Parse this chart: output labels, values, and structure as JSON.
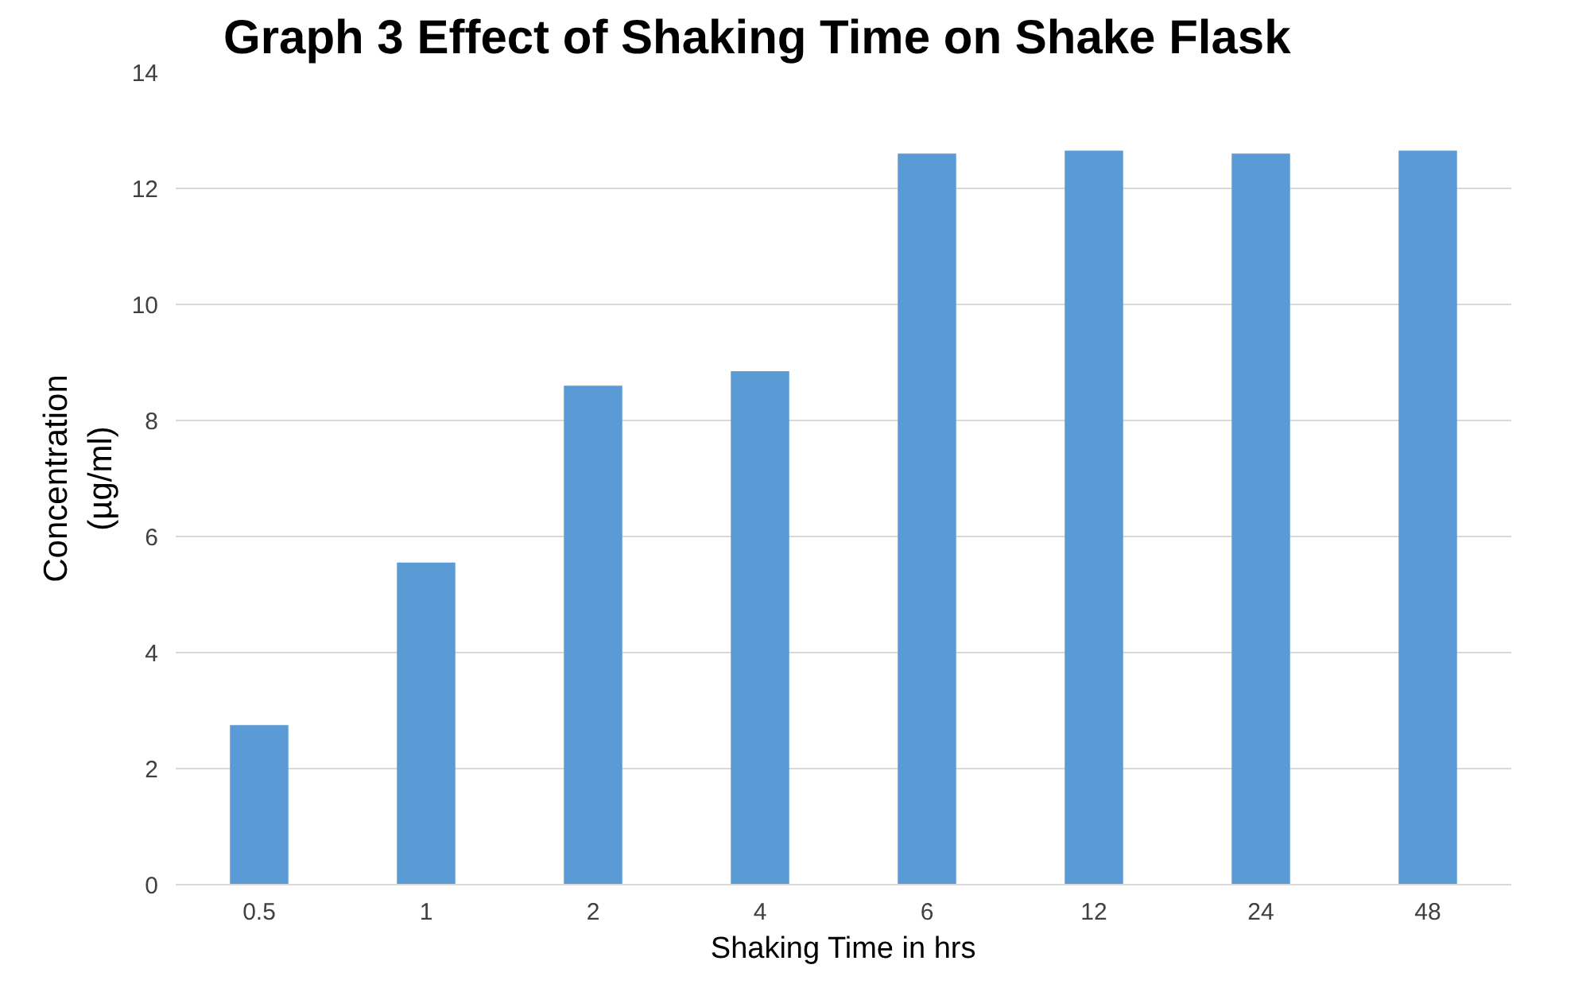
{
  "chart_data": {
    "type": "bar",
    "title": "Graph 3 Effect of Shaking Time on Shake Flask",
    "xlabel": "Shaking Time in hrs",
    "ylabel": "Concentration (µg/ml)",
    "categories": [
      "0.5",
      "1",
      "2",
      "4",
      "6",
      "12",
      "24",
      "48"
    ],
    "values": [
      2.75,
      5.55,
      8.6,
      8.85,
      12.6,
      12.65,
      12.6,
      12.65
    ],
    "color": "#5b9bd5",
    "ylim": [
      0,
      14
    ],
    "yticks": [
      0,
      2,
      4,
      6,
      8,
      10,
      12,
      14
    ],
    "grid": "y"
  }
}
